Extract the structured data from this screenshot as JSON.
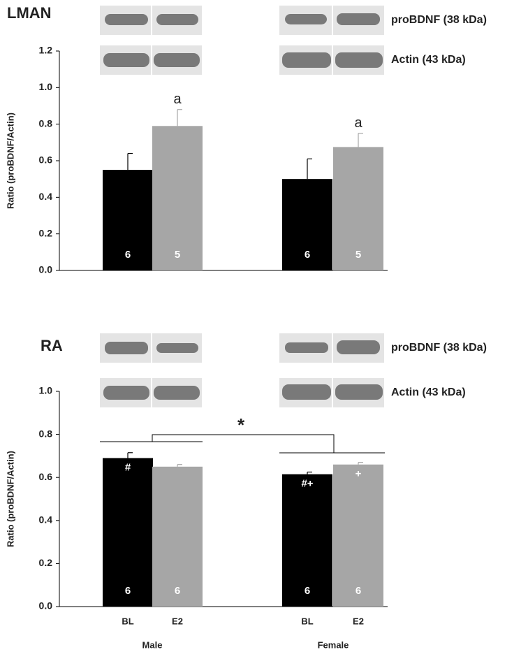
{
  "chart_data": [
    {
      "type": "bar",
      "title": "LMAN",
      "y_label": "Ratio (proBDNF/Actin)",
      "blot_labels": [
        "proBDNF (38 kDa)",
        "Actin (43 kDa)"
      ],
      "ylim": [
        0,
        1.2
      ],
      "yticks": [
        {
          "value": 0,
          "label": "0.0"
        },
        0.2,
        0.4,
        0.6,
        0.8,
        {
          "value": 1,
          "label": "1.0"
        },
        1.2
      ],
      "series": [
        {
          "color": "#000000",
          "values": [
            0.55,
            0.5
          ],
          "errors": [
            0.09,
            0.11
          ],
          "n": [
            6,
            6
          ],
          "annotations": [
            null,
            null
          ]
        },
        {
          "color": "#a6a6a6",
          "values": [
            0.79,
            0.675
          ],
          "errors": [
            0.09,
            0.075
          ],
          "n": [
            5,
            5
          ],
          "annotations": [
            "a",
            "a"
          ]
        }
      ]
    },
    {
      "type": "bar",
      "title": "RA",
      "y_label": "Ratio (proBDNF/Actin)",
      "blot_labels": [
        "proBDNF (38 kDa)",
        "Actin (43 kDa)"
      ],
      "categories": [
        "Male",
        "Female"
      ],
      "ylim": [
        0,
        1
      ],
      "yticks": [
        {
          "value": 0,
          "label": "0.0"
        },
        0.2,
        0.4,
        0.6,
        0.8,
        {
          "value": 1,
          "label": "1.0"
        }
      ],
      "significance": "*",
      "series": [
        {
          "name": "BL",
          "color": "#000000",
          "values": [
            0.69,
            0.615
          ],
          "errors": [
            0.025,
            0.01
          ],
          "n": [
            6,
            6
          ],
          "annotations": [
            "#",
            "#+"
          ]
        },
        {
          "name": "E2",
          "color": "#a6a6a6",
          "values": [
            0.65,
            0.66
          ],
          "errors": [
            0.01,
            0.01
          ],
          "n": [
            6,
            6
          ],
          "annotations": [
            null,
            "+"
          ]
        }
      ]
    }
  ]
}
